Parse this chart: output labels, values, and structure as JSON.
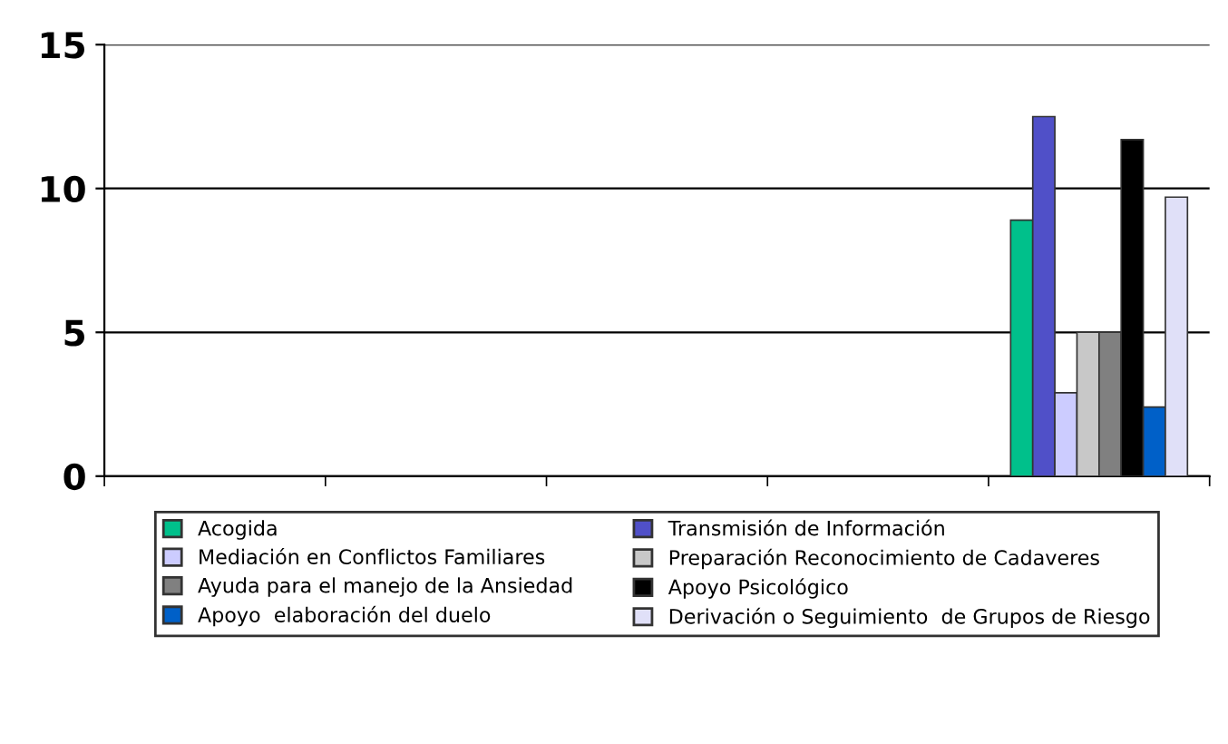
{
  "chart_data": {
    "type": "bar",
    "categories": [
      null,
      null,
      null,
      null,
      null
    ],
    "series": [
      {
        "name": "Acogida",
        "color": "#00c08b",
        "values": [
          null,
          null,
          null,
          null,
          8.9
        ]
      },
      {
        "name": "Transmisión de Información",
        "color": "#5050c8",
        "values": [
          null,
          null,
          null,
          null,
          12.5
        ]
      },
      {
        "name": "Mediación en Conflictos Familiares",
        "color": "#ccccff",
        "values": [
          null,
          null,
          null,
          null,
          2.9
        ]
      },
      {
        "name": "Preparación Reconocimiento de Cadaveres",
        "color": "#c8c8c8",
        "values": [
          null,
          null,
          null,
          null,
          5
        ]
      },
      {
        "name": "Ayuda para el manejo de la Ansiedad",
        "color": "#808080",
        "values": [
          null,
          null,
          null,
          null,
          5
        ]
      },
      {
        "name": "Apoyo Psicológico",
        "color": "#000000",
        "values": [
          null,
          null,
          null,
          null,
          11.7
        ]
      },
      {
        "name": "Apoyo  elaboración del duelo",
        "color": "#0060c8",
        "values": [
          null,
          null,
          null,
          null,
          2.4
        ]
      },
      {
        "name": "Derivación o Seguimiento  de Grupos de Riesgo",
        "color": "#e0e0f8",
        "values": [
          null,
          null,
          null,
          null,
          9.7
        ]
      }
    ],
    "ylim": [
      0,
      15
    ],
    "yticks": [
      0,
      5,
      10,
      15
    ],
    "grid": "y",
    "legend": "bottom"
  }
}
